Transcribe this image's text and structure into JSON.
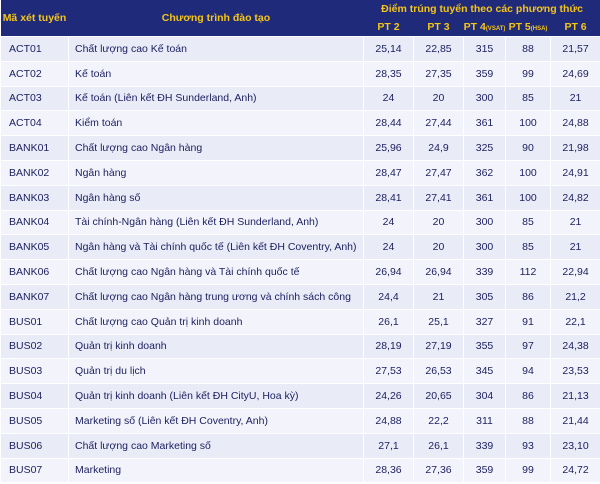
{
  "header": {
    "code": "Mã xét tuyến",
    "program": "Chương trình đào tạo",
    "scores_title": "Điểm trúng tuyển theo các phương thức",
    "methods": [
      {
        "name": "PT 2"
      },
      {
        "name": "PT 3"
      },
      {
        "name": "PT 4",
        "note": "(VSAT)"
      },
      {
        "name": "PT 5",
        "note": "(HSA)"
      },
      {
        "name": "PT 6"
      }
    ]
  },
  "table": {
    "rows": [
      [
        "ACT01",
        "Chất lượng cao Kế toán",
        "25,14",
        "22,85",
        "315",
        "88",
        "21,57"
      ],
      [
        "ACT02",
        "Kế toán",
        "28,35",
        "27,35",
        "359",
        "99",
        "24,69"
      ],
      [
        "ACT03",
        "Kế toán (Liên kết ĐH Sunderland, Anh)",
        "24",
        "20",
        "300",
        "85",
        "21"
      ],
      [
        "ACT04",
        "Kiểm toán",
        "28,44",
        "27,44",
        "361",
        "100",
        "24,88"
      ],
      [
        "BANK01",
        "Chất lượng cao Ngân hàng",
        "25,96",
        "24,9",
        "325",
        "90",
        "21,98"
      ],
      [
        "BANK02",
        "Ngân hàng",
        "28,47",
        "27,47",
        "362",
        "100",
        "24,91"
      ],
      [
        "BANK03",
        "Ngân hàng số",
        "28,41",
        "27,41",
        "361",
        "100",
        "24,82"
      ],
      [
        "BANK04",
        "Tài chính-Ngân hàng (Liên kết ĐH Sunderland, Anh)",
        "24",
        "20",
        "300",
        "85",
        "21"
      ],
      [
        "BANK05",
        "Ngân hàng và Tài chính quốc tế (Liên kết ĐH Coventry, Anh)",
        "24",
        "20",
        "300",
        "85",
        "21"
      ],
      [
        "BANK06",
        "Chất lượng cao Ngân hàng và Tài chính quốc tế",
        "26,94",
        "26,94",
        "339",
        "112",
        "22,94"
      ],
      [
        "BANK07",
        "Chất lượng cao Ngân hàng trung ương và chính sách công",
        "24,4",
        "21",
        "305",
        "86",
        "21,2"
      ],
      [
        "BUS01",
        "Chất lượng cao Quản trị kinh doanh",
        "26,1",
        "25,1",
        "327",
        "91",
        "22,1"
      ],
      [
        "BUS02",
        "Quản trị kinh doanh",
        "28,19",
        "27,19",
        "355",
        "97",
        "24,38"
      ],
      [
        "BUS03",
        "Quản trị du lịch",
        "27,53",
        "26,53",
        "345",
        "94",
        "23,53"
      ],
      [
        "BUS04",
        "Quản trị kinh doanh (Liên kết ĐH CityU, Hoa kỳ)",
        "24,26",
        "20,65",
        "304",
        "86",
        "21,13"
      ],
      [
        "BUS05",
        "Marketing số (Liên kết ĐH Coventry, Anh)",
        "24,88",
        "22,2",
        "311",
        "88",
        "21,44"
      ],
      [
        "BUS06",
        "Chất lượng cao Marketing số",
        "27,1",
        "26,1",
        "339",
        "93",
        "23,10"
      ],
      [
        "BUS07",
        "Marketing",
        "28,36",
        "27,36",
        "359",
        "99",
        "24,72"
      ]
    ]
  }
}
